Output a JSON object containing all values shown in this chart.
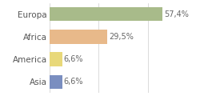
{
  "categories": [
    "Europa",
    "Africa",
    "America",
    "Asia"
  ],
  "values": [
    57.4,
    29.5,
    6.6,
    6.6
  ],
  "labels": [
    "57,4%",
    "29,5%",
    "6,6%",
    "6,6%"
  ],
  "bar_colors": [
    "#a8bb8a",
    "#e8b98a",
    "#e8d87a",
    "#7a8ec0"
  ],
  "background_color": "#ffffff",
  "xlim": [
    0,
    75
  ],
  "bar_height": 0.62,
  "label_fontsize": 7,
  "tick_fontsize": 7.5
}
